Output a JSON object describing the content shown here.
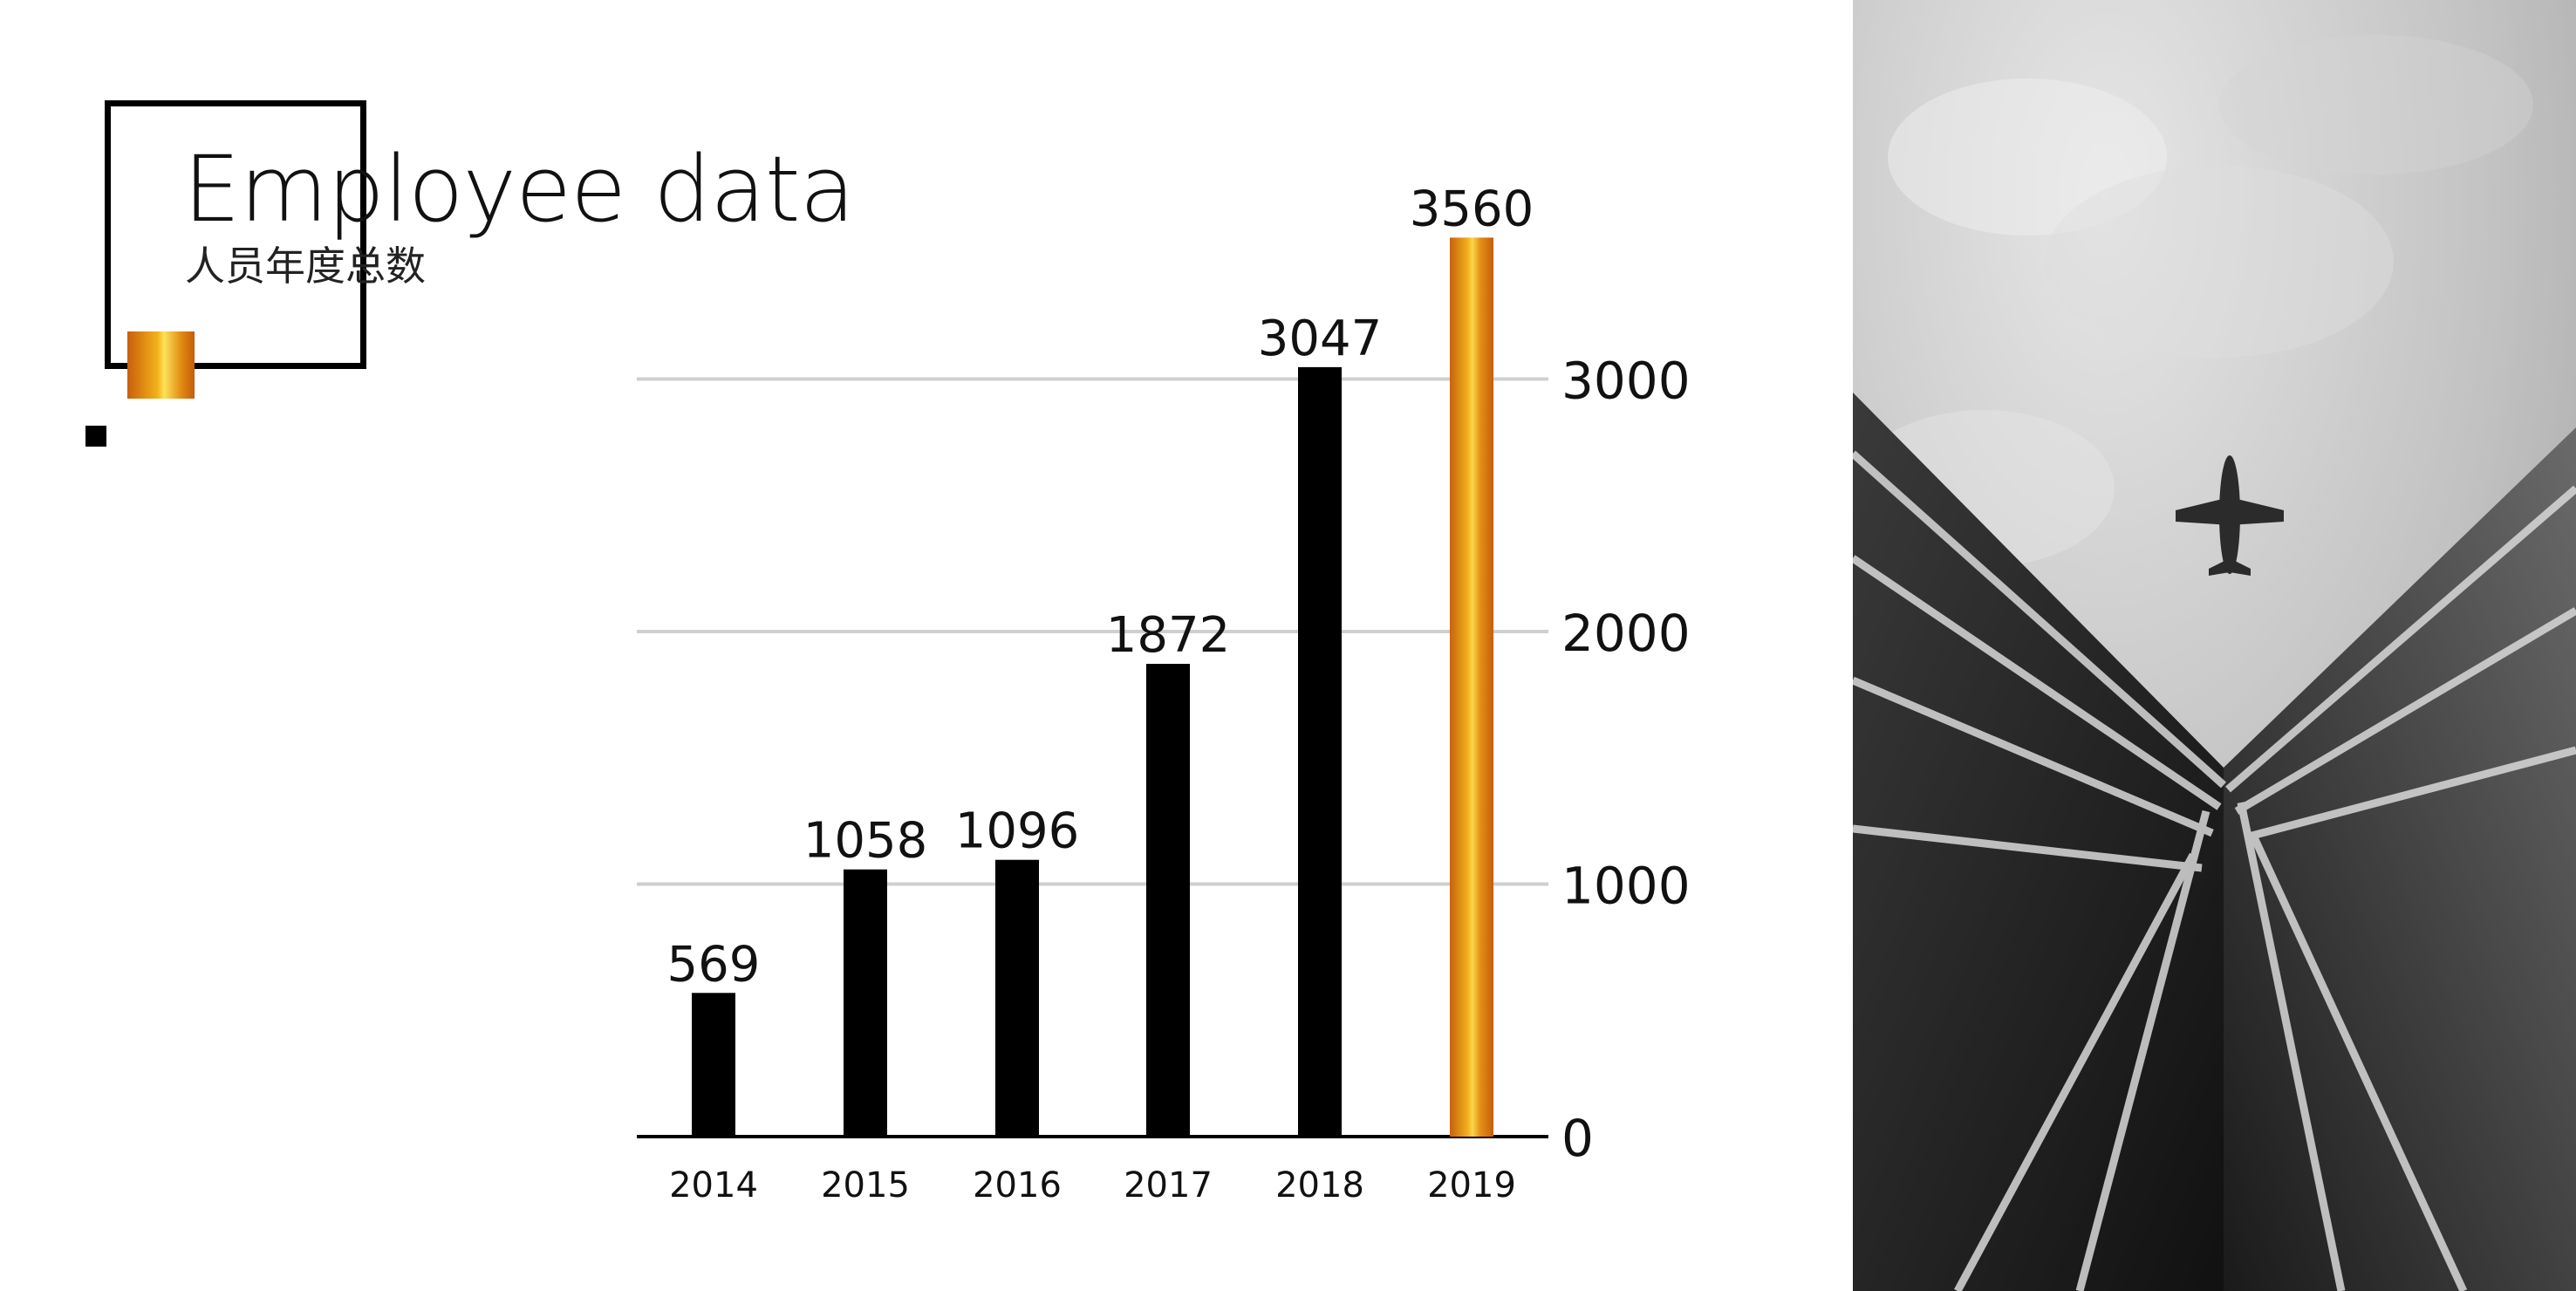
{
  "header": {
    "title": "Employee data",
    "subtitle": "人员年度总数"
  },
  "colors": {
    "bar": "#000000",
    "highlight_bar_dark": "#c9650e",
    "highlight_bar_light": "#f7c52a",
    "grid": "#cfcfcf"
  },
  "chart_data": {
    "type": "bar",
    "categories": [
      "2014",
      "2015",
      "2016",
      "2017",
      "2018",
      "2019"
    ],
    "values": [
      569,
      1058,
      1096,
      1872,
      3047,
      3560
    ],
    "data_labels": [
      "569",
      "1058",
      "1096",
      "1872",
      "3047",
      "3560"
    ],
    "highlight_index": 5,
    "ylim": [
      0,
      3560
    ],
    "yticks": [
      0,
      1000,
      2000,
      3000
    ],
    "ytick_labels": [
      "0",
      "1000",
      "2000",
      "3000"
    ],
    "y_axis_side": "right",
    "grid": true
  },
  "photo": {
    "icon": "airplane-icon"
  }
}
